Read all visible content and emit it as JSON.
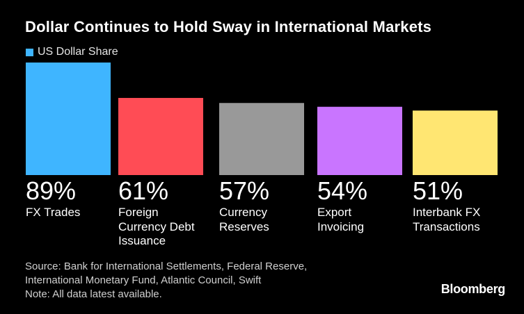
{
  "header": {
    "title": "Dollar Continues to Hold Sway in International Markets"
  },
  "legend": {
    "label": "US Dollar Share",
    "color": "#3fb5ff"
  },
  "chart_data": {
    "type": "bar",
    "title": "Dollar Continues to Hold Sway in International Markets",
    "series": [
      {
        "name": "US Dollar Share",
        "values": [
          89,
          61,
          57,
          54,
          51
        ]
      }
    ],
    "categories": [
      "FX Trades",
      "Foreign\nCurrency Debt\nIssuance",
      "Currency\nReserves",
      "Export\nInvoicing",
      "Interbank FX\nTransactions"
    ],
    "value_labels": [
      "89%",
      "61%",
      "57%",
      "54%",
      "51%"
    ],
    "colors": [
      "#3fb5ff",
      "#ff4c55",
      "#999999",
      "#c975ff",
      "#ffe672"
    ],
    "ylim": [
      0,
      89
    ],
    "grid": false,
    "legend_position": "top-left"
  },
  "footer": {
    "source_line1": "Source: Bank for International Settlements, Federal Reserve,",
    "source_line2": "International Monetary Fund, Atlantic Council, Swift",
    "note": "Note: All data latest available."
  },
  "brand": {
    "name": "Bloomberg"
  }
}
